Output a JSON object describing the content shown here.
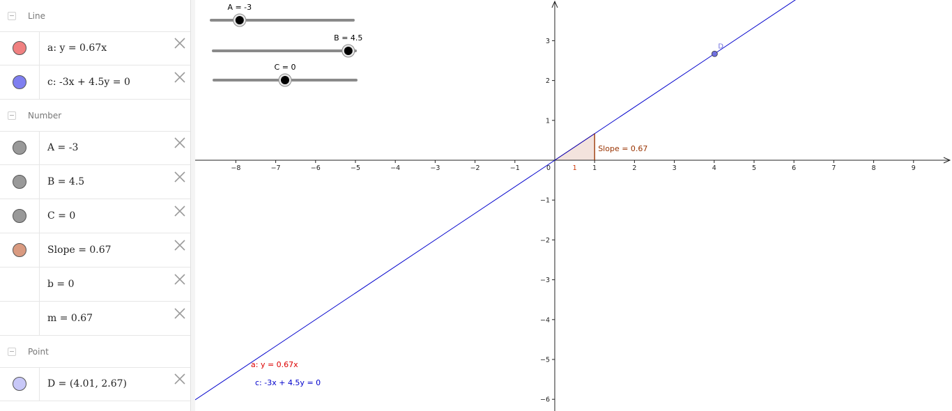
{
  "algebra": {
    "groups": [
      {
        "label": "Line",
        "items": [
          {
            "text": "a: y = 0.67x",
            "color": "#f08080"
          },
          {
            "text": "c: -3x + 4.5y = 0",
            "color": "#7f7ff0"
          }
        ]
      },
      {
        "label": "Number",
        "items": [
          {
            "text": "A = -3",
            "color": "#999999"
          },
          {
            "text": "B = 4.5",
            "color": "#999999"
          },
          {
            "text": "C = 0",
            "color": "#999999"
          },
          {
            "text": "Slope = 0.67",
            "color": "#d99a80"
          },
          {
            "text": "b = 0",
            "color": ""
          },
          {
            "text": "m = 0.67",
            "color": ""
          }
        ]
      },
      {
        "label": "Point",
        "items": [
          {
            "text": "D = (4.01, 2.67)",
            "color": "#c8c8f8"
          }
        ]
      }
    ]
  },
  "graphics": {
    "sliders": [
      {
        "label": "A = -3",
        "min": -5,
        "max": 5,
        "value": -3
      },
      {
        "label": "B = 4.5",
        "min": -5,
        "max": 5,
        "value": 4.5
      },
      {
        "label": "C = 0",
        "min": -5,
        "max": 5,
        "value": 0
      }
    ],
    "x_ticks": [
      "−8",
      "−7",
      "−6",
      "−5",
      "−4",
      "−3",
      "−2",
      "−1",
      "0",
      "1",
      "2",
      "3",
      "4",
      "5",
      "6",
      "7",
      "8",
      "9"
    ],
    "y_ticks_pos": [
      "1",
      "2",
      "3"
    ],
    "y_ticks_neg": [
      "−1",
      "−2",
      "−3",
      "−4",
      "−5",
      "−6"
    ],
    "line_a_color": "#0000cc",
    "point_label": "D",
    "point_color": "#7070e0",
    "slope_label": "Slope = 0.67",
    "slope_run_label": "1",
    "slope_color": "#993300",
    "label_a": "a: y = 0.67x",
    "label_a_color": "#dd0000",
    "label_c": "c: -3x + 4.5y = 0",
    "label_c_color": "#0000cc"
  }
}
